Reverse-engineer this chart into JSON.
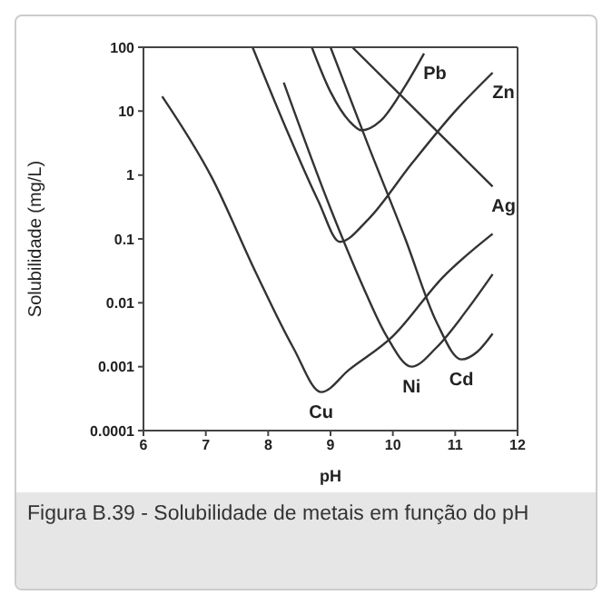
{
  "chart_data": {
    "type": "line",
    "xlabel": "pH",
    "ylabel": "Solubilidade (mg/L)",
    "log": "y",
    "xlim": [
      6,
      12
    ],
    "xticks": [
      6,
      7,
      8,
      9,
      10,
      11,
      12
    ],
    "ylim": [
      0.0001,
      100
    ],
    "yticks": [
      0.0001,
      0.001,
      0.01,
      0.1,
      1,
      10,
      100
    ],
    "marker": "none",
    "line_style": "solid",
    "series": [
      {
        "name": "Pb",
        "color": "#333333",
        "x": [
          8.7,
          9.0,
          9.3,
          9.5,
          9.8,
          10.2,
          10.5
        ],
        "values": [
          100,
          20,
          7,
          5,
          7,
          25,
          80
        ]
      },
      {
        "name": "Zn",
        "color": "#333333",
        "x": [
          7.75,
          8.3,
          8.8,
          9.15,
          9.6,
          10.3,
          11,
          11.6
        ],
        "values": [
          100,
          5,
          0.4,
          0.09,
          0.2,
          1.5,
          10,
          40
        ]
      },
      {
        "name": "Ag",
        "color": "#333333",
        "x": [
          9.35,
          11.6
        ],
        "values": [
          100,
          0.66
        ]
      },
      {
        "name": "Cu",
        "color": "#333333",
        "x": [
          6.3,
          7.1,
          7.8,
          8.4,
          8.85,
          9.3,
          10,
          10.8,
          11.6
        ],
        "values": [
          17,
          0.9,
          0.03,
          0.002,
          0.0004,
          0.0009,
          0.003,
          0.025,
          0.12
        ]
      },
      {
        "name": "Ni",
        "color": "#333333",
        "x": [
          8.25,
          9.0,
          9.5,
          9.9,
          10.3,
          10.7,
          11.2,
          11.6
        ],
        "values": [
          28,
          0.3,
          0.02,
          0.003,
          0.001,
          0.002,
          0.008,
          0.028
        ]
      },
      {
        "name": "Cd",
        "color": "#333333",
        "x": [
          9.0,
          9.6,
          10.2,
          10.7,
          11.1,
          11.35,
          11.6
        ],
        "values": [
          100,
          3,
          0.1,
          0.005,
          0.0013,
          0.0017,
          0.0033
        ]
      }
    ],
    "annotations": [
      "Figura B.39 - Solubilidade de metais em função do pH"
    ]
  }
}
